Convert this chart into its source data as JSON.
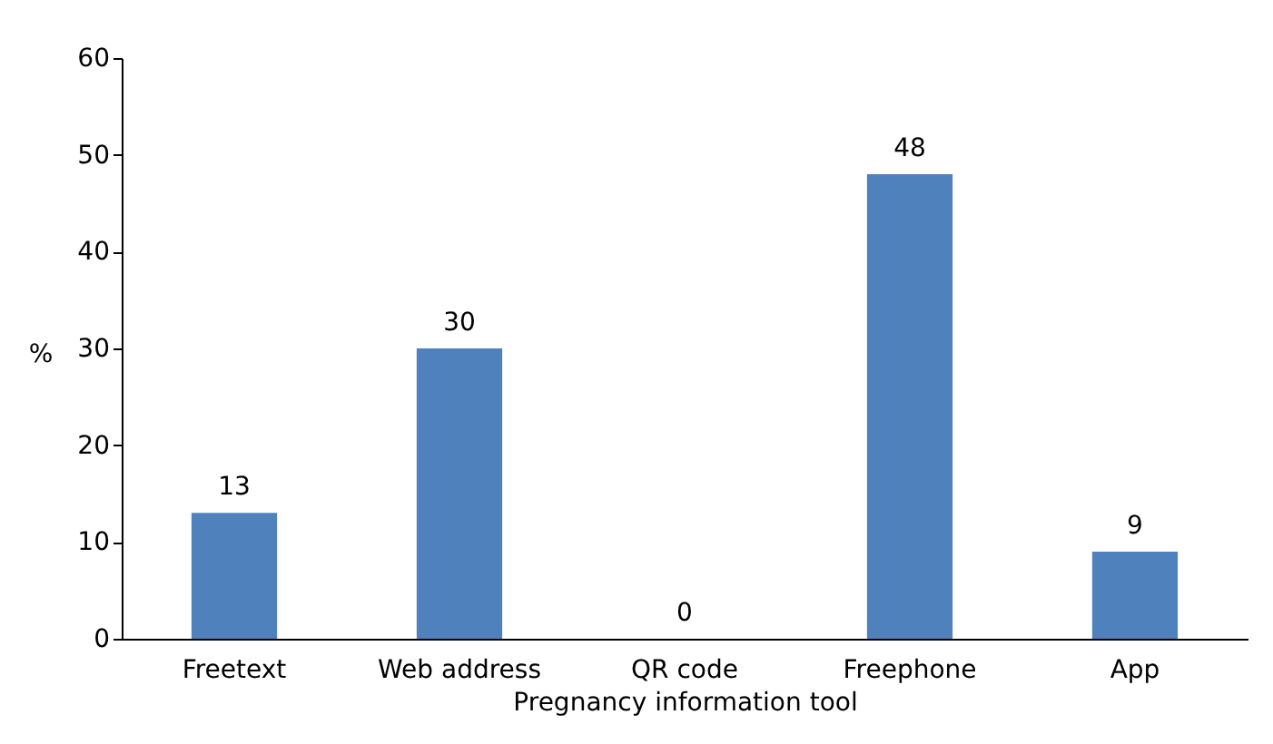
{
  "chart_data": {
    "type": "bar",
    "xlabel": "Pregnancy information tool",
    "ylabel": "%",
    "categories": [
      "Freetext",
      "Web address",
      "QR code",
      "Freephone",
      "App"
    ],
    "values": [
      13,
      30,
      0,
      48,
      9
    ],
    "color": "#4f81bd",
    "ylim": [
      0,
      60
    ],
    "yticks": [
      0,
      10,
      20,
      30,
      40,
      50,
      60
    ],
    "grid": false,
    "data_labels": true
  }
}
